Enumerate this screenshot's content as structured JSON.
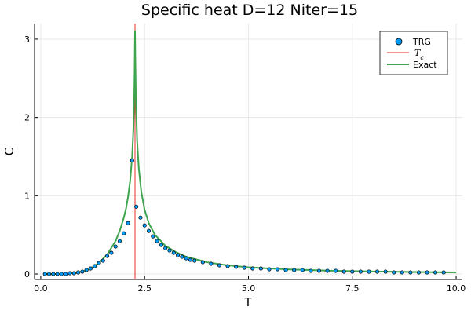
{
  "chart_data": {
    "type": "line",
    "title": "Specific heat D=12 Niter=15",
    "xlabel": "T",
    "ylabel": "C",
    "xlim": [
      -0.15,
      10.15
    ],
    "ylim": [
      -0.07,
      3.2
    ],
    "x_ticks": [
      0.0,
      2.5,
      5.0,
      7.5,
      10.0
    ],
    "x_tick_labels": [
      "0.0",
      "2.5",
      "5.0",
      "7.5",
      "10.0"
    ],
    "y_ticks": [
      0,
      1,
      2,
      3
    ],
    "y_tick_labels": [
      "0",
      "1",
      "2",
      "3"
    ],
    "grid": true,
    "legend_position": "top-right",
    "critical_temperature": 2.269,
    "series": [
      {
        "name": "TRG",
        "type": "scatter",
        "color": "#009AFA",
        "points": [
          [
            0.1,
            0.0
          ],
          [
            0.3,
            0.0
          ],
          [
            0.5,
            0.0
          ],
          [
            0.7,
            0.01
          ],
          [
            0.9,
            0.02
          ],
          [
            1.1,
            0.05
          ],
          [
            1.3,
            0.1
          ],
          [
            1.5,
            0.17
          ],
          [
            1.7,
            0.27
          ],
          [
            1.9,
            0.42
          ],
          [
            2.1,
            0.65
          ],
          [
            2.3,
            0.86
          ],
          [
            2.5,
            0.62
          ],
          [
            2.7,
            0.48
          ],
          [
            2.9,
            0.37
          ],
          [
            3.1,
            0.3
          ],
          [
            3.3,
            0.24
          ],
          [
            3.5,
            0.2
          ],
          [
            3.7,
            0.17
          ],
          [
            3.9,
            0.15
          ],
          [
            4.1,
            0.13
          ],
          [
            4.3,
            0.11
          ],
          [
            4.5,
            0.1
          ],
          [
            4.7,
            0.09
          ],
          [
            4.9,
            0.08
          ],
          [
            5.1,
            0.07
          ],
          [
            5.3,
            0.07
          ],
          [
            5.5,
            0.06
          ],
          [
            5.7,
            0.06
          ],
          [
            5.9,
            0.05
          ],
          [
            6.1,
            0.05
          ],
          [
            6.3,
            0.05
          ],
          [
            6.5,
            0.04
          ],
          [
            6.7,
            0.04
          ],
          [
            6.9,
            0.04
          ],
          [
            7.1,
            0.04
          ],
          [
            7.3,
            0.03
          ],
          [
            7.5,
            0.03
          ],
          [
            7.7,
            0.03
          ],
          [
            7.9,
            0.03
          ],
          [
            8.1,
            0.03
          ],
          [
            8.3,
            0.03
          ],
          [
            8.5,
            0.02
          ],
          [
            8.7,
            0.02
          ],
          [
            8.9,
            0.02
          ],
          [
            9.1,
            0.02
          ],
          [
            9.3,
            0.02
          ],
          [
            9.5,
            0.02
          ],
          [
            9.7,
            0.02
          ],
          [
            0.2,
            0.0
          ],
          [
            0.4,
            0.0
          ],
          [
            0.6,
            0.0
          ],
          [
            0.8,
            0.01
          ],
          [
            1.0,
            0.03
          ],
          [
            1.2,
            0.07
          ],
          [
            1.4,
            0.14
          ],
          [
            1.6,
            0.23
          ],
          [
            1.8,
            0.35
          ],
          [
            2.0,
            0.52
          ],
          [
            2.2,
            1.45
          ],
          [
            2.4,
            0.72
          ],
          [
            2.6,
            0.55
          ],
          [
            2.8,
            0.42
          ],
          [
            3.0,
            0.33
          ],
          [
            3.2,
            0.27
          ],
          [
            3.4,
            0.22
          ],
          [
            3.6,
            0.18
          ]
        ]
      },
      {
        "name": "Tc",
        "type": "vline",
        "color": "#E3312D",
        "x": 2.269
      },
      {
        "name": "Exact",
        "type": "line",
        "color": "#3EA44E",
        "points": [
          [
            0.1,
            0.0
          ],
          [
            0.5,
            0.0
          ],
          [
            0.8,
            0.01
          ],
          [
            1.0,
            0.03
          ],
          [
            1.2,
            0.07
          ],
          [
            1.4,
            0.14
          ],
          [
            1.6,
            0.25
          ],
          [
            1.8,
            0.42
          ],
          [
            1.9,
            0.55
          ],
          [
            2.0,
            0.72
          ],
          [
            2.05,
            0.83
          ],
          [
            2.1,
            0.98
          ],
          [
            2.15,
            1.18
          ],
          [
            2.2,
            1.5
          ],
          [
            2.23,
            1.85
          ],
          [
            2.25,
            2.25
          ],
          [
            2.26,
            2.6
          ],
          [
            2.265,
            2.9
          ],
          [
            2.269,
            3.1
          ],
          [
            2.275,
            2.8
          ],
          [
            2.29,
            2.25
          ],
          [
            2.32,
            1.7
          ],
          [
            2.36,
            1.35
          ],
          [
            2.42,
            1.05
          ],
          [
            2.5,
            0.82
          ],
          [
            2.6,
            0.65
          ],
          [
            2.75,
            0.5
          ],
          [
            3.0,
            0.36
          ],
          [
            3.25,
            0.28
          ],
          [
            3.5,
            0.22
          ],
          [
            4.0,
            0.15
          ],
          [
            4.5,
            0.11
          ],
          [
            5.0,
            0.085
          ],
          [
            5.5,
            0.07
          ],
          [
            6.0,
            0.058
          ],
          [
            7.0,
            0.042
          ],
          [
            8.0,
            0.032
          ],
          [
            9.0,
            0.025
          ],
          [
            10.0,
            0.02
          ]
        ]
      }
    ]
  },
  "legend": {
    "entries": [
      {
        "label": "TRG"
      },
      {
        "label": "Tc"
      },
      {
        "label": "Exact"
      }
    ]
  }
}
